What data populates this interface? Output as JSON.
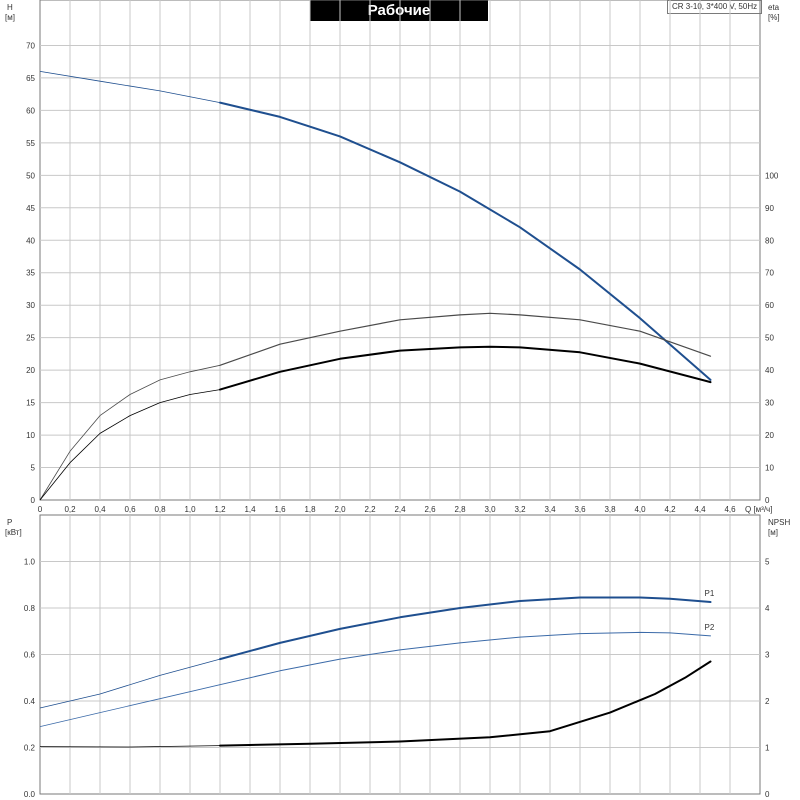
{
  "header": {
    "title": "Рабочие характеристики",
    "model": "CR 3-10, 3*400 V, 50Hz"
  },
  "colors": {
    "blue": "#1f4f8f",
    "thin_blue": "#3b6aa8",
    "black": "#000000",
    "grey": "#4a4a4a",
    "grid": "#c8c8c8"
  },
  "chart_data": [
    {
      "type": "line",
      "name": "top-panel",
      "xlabel": "Q [м³/ч]",
      "ylabel_left": "H",
      "ylabel_left_unit": "[м]",
      "ylabel_right": "eta",
      "ylabel_right_unit": "[%]",
      "xlim": [
        0,
        4.8
      ],
      "ylim_left": [
        0,
        77
      ],
      "ylim_right": [
        0,
        154
      ],
      "grid": true,
      "x_ticks": [
        "0",
        "0,2",
        "0,4",
        "0,6",
        "0,8",
        "1,0",
        "1,2",
        "1,4",
        "1,6",
        "1,8",
        "2,0",
        "2,2",
        "2,4",
        "2,6",
        "2,8",
        "3,0",
        "3,2",
        "3,4",
        "3,6",
        "3,8",
        "4,0",
        "4,2",
        "4,4",
        "4,6"
      ],
      "y_left_ticks": [
        "0",
        "5",
        "10",
        "15",
        "20",
        "25",
        "30",
        "35",
        "40",
        "45",
        "50",
        "55",
        "60",
        "65",
        "70"
      ],
      "y_right_ticks": [
        "0",
        "10",
        "20",
        "30",
        "40",
        "50",
        "60",
        "70",
        "80",
        "90",
        "100"
      ],
      "series": [
        {
          "axis": "left",
          "color": "blue",
          "x": [
            0,
            0.4,
            0.8,
            1.2,
            1.6,
            2.0,
            2.4,
            2.8,
            3.2,
            3.6,
            4.0,
            4.47
          ],
          "values": [
            66,
            64.5,
            63,
            61.2,
            59,
            56,
            52,
            47.5,
            42,
            35.5,
            28,
            18.5
          ],
          "op_start": 1.2
        },
        {
          "axis": "right",
          "color": "grey",
          "x": [
            0,
            0.2,
            0.4,
            0.6,
            0.8,
            1.0,
            1.2,
            1.6,
            2.0,
            2.4,
            2.8,
            3.0,
            3.2,
            3.6,
            4.0,
            4.47
          ],
          "values": [
            0,
            15,
            26,
            32.5,
            37,
            39.5,
            41.5,
            48,
            52,
            55.5,
            57,
            57.5,
            57,
            55.5,
            52,
            44.3
          ],
          "op_start": 1.2
        },
        {
          "axis": "right",
          "color": "black",
          "x": [
            0,
            0.2,
            0.4,
            0.6,
            0.8,
            1.0,
            1.2,
            1.6,
            2.0,
            2.4,
            2.8,
            3.0,
            3.2,
            3.6,
            4.0,
            4.47
          ],
          "values": [
            0,
            11.5,
            20.5,
            26,
            30,
            32.5,
            34,
            39.5,
            43.5,
            46,
            47,
            47.2,
            47,
            45.5,
            42,
            36.3
          ],
          "op_start": 1.2
        }
      ]
    },
    {
      "type": "line",
      "name": "bottom-panel",
      "ylabel_left": "P",
      "ylabel_left_unit": "[кВт]",
      "ylabel_right": "NPSH",
      "ylabel_right_unit": "[м]",
      "xlim": [
        0,
        4.8
      ],
      "ylim_left": [
        0,
        1.2
      ],
      "ylim_right": [
        0,
        6
      ],
      "grid": true,
      "y_left_ticks": [
        "0.0",
        "0.2",
        "0.4",
        "0.6",
        "0.8",
        "1.0"
      ],
      "y_right_ticks": [
        "0",
        "1",
        "2",
        "3",
        "4",
        "5"
      ],
      "series": [
        {
          "name": "P1",
          "axis": "left",
          "color": "blue",
          "x": [
            0,
            0.4,
            0.8,
            1.2,
            1.6,
            2.0,
            2.4,
            2.8,
            3.2,
            3.6,
            4.0,
            4.2,
            4.47
          ],
          "values": [
            0.37,
            0.43,
            0.51,
            0.58,
            0.65,
            0.71,
            0.76,
            0.8,
            0.83,
            0.845,
            0.845,
            0.84,
            0.826
          ],
          "op_start": 1.2
        },
        {
          "name": "P2",
          "axis": "left",
          "color": "thin_blue",
          "x": [
            0,
            0.4,
            0.8,
            1.2,
            1.6,
            2.0,
            2.4,
            2.8,
            3.2,
            3.6,
            4.0,
            4.2,
            4.47
          ],
          "values": [
            0.29,
            0.35,
            0.41,
            0.47,
            0.53,
            0.58,
            0.62,
            0.65,
            0.675,
            0.69,
            0.695,
            0.693,
            0.68
          ],
          "op_start": 1.2
        },
        {
          "axis": "right",
          "color": "black",
          "x": [
            0,
            0.6,
            1.2,
            1.8,
            2.4,
            3.0,
            3.4,
            3.8,
            4.1,
            4.3,
            4.47
          ],
          "values": [
            1.02,
            1.01,
            1.04,
            1.08,
            1.13,
            1.22,
            1.35,
            1.75,
            2.15,
            2.5,
            2.85
          ],
          "op_start": 1.2
        }
      ]
    }
  ]
}
